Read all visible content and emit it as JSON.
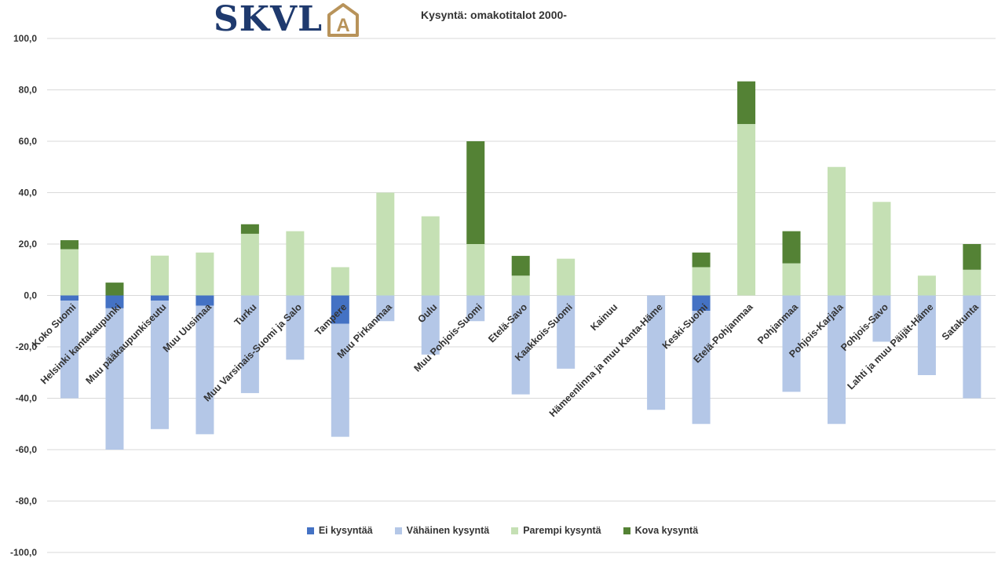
{
  "logo": {
    "text": "SKVL",
    "mark_letter": "A",
    "text_color": "#1f3a6e",
    "mark_color": "#b8935a"
  },
  "chart_data": {
    "type": "bar",
    "stacked": true,
    "title": "Kysyntä: omakotitalot 2000-",
    "xlabel": "",
    "ylabel": "",
    "ylim": [
      -100,
      100
    ],
    "y_ticks": [
      "-100,0",
      "-80,0",
      "-60,0",
      "-40,0",
      "-20,0",
      "0,0",
      "20,0",
      "40,0",
      "60,0",
      "80,0",
      "100,0"
    ],
    "grid": true,
    "legend_position": "bottom",
    "categories": [
      "Koko Suomi",
      "Helsinki kantakaupunki",
      "Muu pääkaupunkiseutu",
      "Muu Uusimaa",
      "Turku",
      "Muu Varsinais-Suomi ja Salo",
      "Tampere",
      "Muu Pirkanmaa",
      "Oulu",
      "Muu Pohjois-Suomi",
      "Etelä-Savo",
      "Kaakkois-Suomi",
      "Kainuu",
      "Hämeenlinna ja muu Kanta-Häme",
      "Keski-Suomi",
      "Etelä-Pohjanmaa",
      "Pohjanmaa",
      "Pohjois-Karjala",
      "Pohjois-Savo",
      "Lahti ja muu Päijät-Häme",
      "Satakunta"
    ],
    "series": [
      {
        "name": "Ei kysyntää",
        "color": "#4472c4",
        "values": [
          -2,
          -5,
          -2,
          -4,
          0,
          0,
          -11,
          0,
          0,
          0,
          0,
          0,
          0,
          0,
          -6,
          0,
          0,
          0,
          0,
          0,
          0
        ]
      },
      {
        "name": "Vähäinen kysyntä",
        "color": "#b4c7e7",
        "values": [
          -38,
          -55,
          -50,
          -50,
          -38,
          -25,
          -44,
          -10,
          -23,
          -10,
          -38.5,
          -28.5,
          0,
          -44.5,
          -44,
          0,
          -37.5,
          -50,
          -18,
          -31,
          -40
        ]
      },
      {
        "name": "Parempi kysyntä",
        "color": "#c5e0b4",
        "values": [
          18,
          0,
          15.5,
          16.7,
          24,
          25,
          11,
          40,
          30.8,
          20,
          7.7,
          14.3,
          0,
          0,
          11,
          66.7,
          12.5,
          50,
          36.4,
          7.7,
          10
        ]
      },
      {
        "name": "Kova kysyntä",
        "color": "#548235",
        "values": [
          3.5,
          5,
          0,
          0,
          3.7,
          0,
          0,
          0,
          0,
          40,
          7.7,
          0,
          0,
          0,
          5.7,
          16.6,
          12.5,
          0,
          0,
          0,
          10
        ]
      }
    ]
  }
}
